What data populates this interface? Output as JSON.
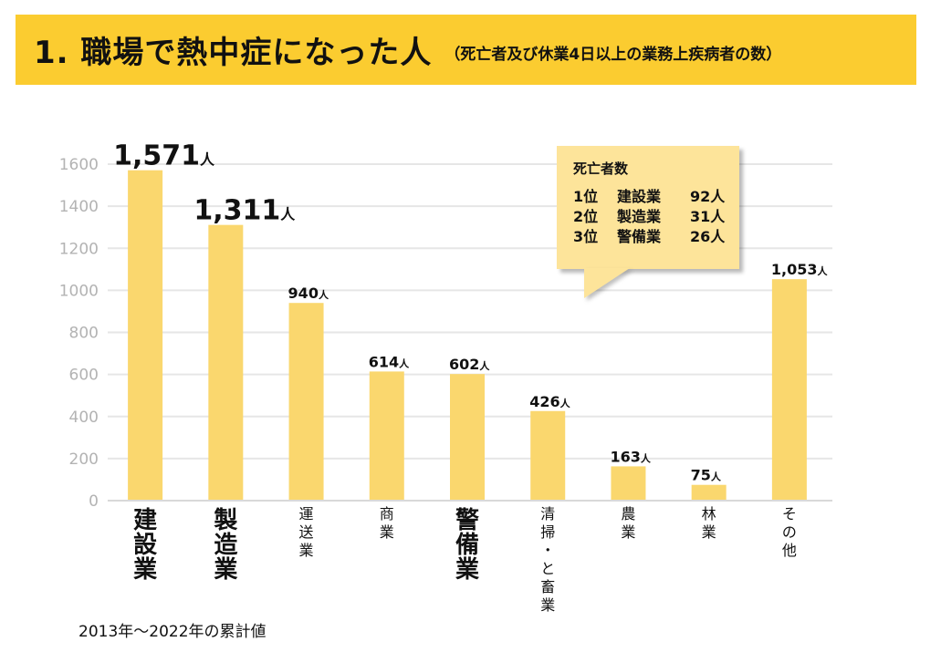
{
  "header": {
    "title": "1. 職場で熱中症になった人",
    "subtitle": "（死亡者及び休業4日以上の業務上疾病者の数）"
  },
  "callout": {
    "title": "死亡者数",
    "rows": [
      {
        "rank": "1位",
        "industry": "建設業",
        "count": "92人"
      },
      {
        "rank": "2位",
        "industry": "製造業",
        "count": "31人"
      },
      {
        "rank": "3位",
        "industry": "警備業",
        "count": "26人"
      }
    ]
  },
  "footnote": "2013年～2022年の累計値",
  "colors": {
    "header_bg": "#FBCC30",
    "bar": "#FAD76E",
    "callout_bg": "#FDE49A",
    "grid": "#e6e6e6",
    "tick": "#b3b3b3"
  },
  "chart_data": {
    "type": "bar",
    "title": "職場で熱中症になった人",
    "xlabel": "",
    "ylabel": "",
    "ylim": [
      0,
      1600
    ],
    "yticks": [
      0,
      200,
      400,
      600,
      800,
      1000,
      1200,
      1400,
      1600
    ],
    "grid": true,
    "unit_suffix": "人",
    "categories": [
      "建設業",
      "製造業",
      "運送業",
      "商業",
      "警備業",
      "清掃・と畜業",
      "農業",
      "林業",
      "その他"
    ],
    "values": [
      1571,
      1311,
      940,
      614,
      602,
      426,
      163,
      75,
      1053
    ],
    "value_labels": [
      "1,571",
      "1,311",
      "940",
      "614",
      "602",
      "426",
      "163",
      "75",
      "1,053"
    ],
    "emphasized": [
      true,
      true,
      false,
      false,
      true,
      false,
      false,
      false,
      false
    ]
  }
}
